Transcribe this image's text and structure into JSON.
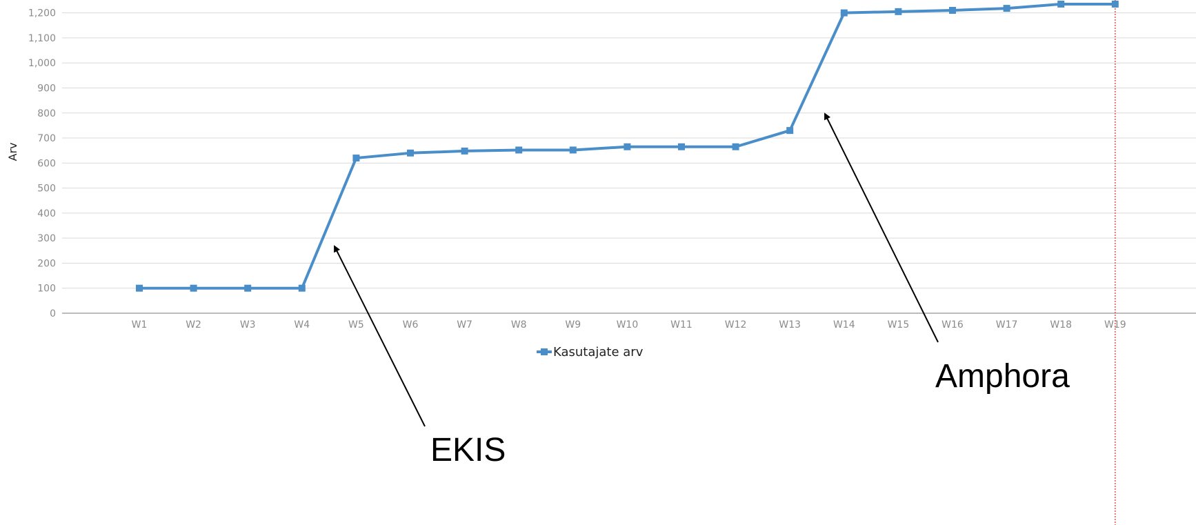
{
  "chart_data": {
    "type": "line",
    "title": "",
    "xlabel": "",
    "ylabel": "Arv",
    "categories": [
      "W1",
      "W2",
      "W3",
      "W4",
      "W5",
      "W6",
      "W7",
      "W8",
      "W9",
      "W10",
      "W11",
      "W12",
      "W13",
      "W14",
      "W15",
      "W16",
      "W17",
      "W18",
      "W19"
    ],
    "series": [
      {
        "name": "Kasutajate arv",
        "values": [
          100,
          100,
          100,
          100,
          620,
          640,
          648,
          652,
          652,
          665,
          665,
          665,
          730,
          1200,
          1205,
          1210,
          1218,
          1235,
          1235
        ]
      }
    ],
    "ylim": [
      0,
      1240
    ],
    "yticks": [
      0,
      100,
      200,
      300,
      400,
      500,
      600,
      700,
      800,
      900,
      1000,
      1100,
      1200
    ],
    "ytick_labels": [
      "0",
      "100",
      "200",
      "300",
      "400",
      "500",
      "600",
      "700",
      "800",
      "900",
      "1,000",
      "1,100",
      "1,200"
    ],
    "grid": true,
    "legend_position": "bottom",
    "annotations": [
      {
        "text": "EKIS",
        "points_to": "W5"
      },
      {
        "text": "Amphora",
        "points_to": "W14"
      }
    ],
    "marker_line": {
      "at": "W19",
      "style": "dotted"
    },
    "colors": {
      "series": "#4a8ec9",
      "grid": "#d9d9d9",
      "axis": "#a6a6a6",
      "tick_text": "#8a8a8a",
      "annotation": "#000000",
      "marker_line": "#e05050"
    }
  }
}
